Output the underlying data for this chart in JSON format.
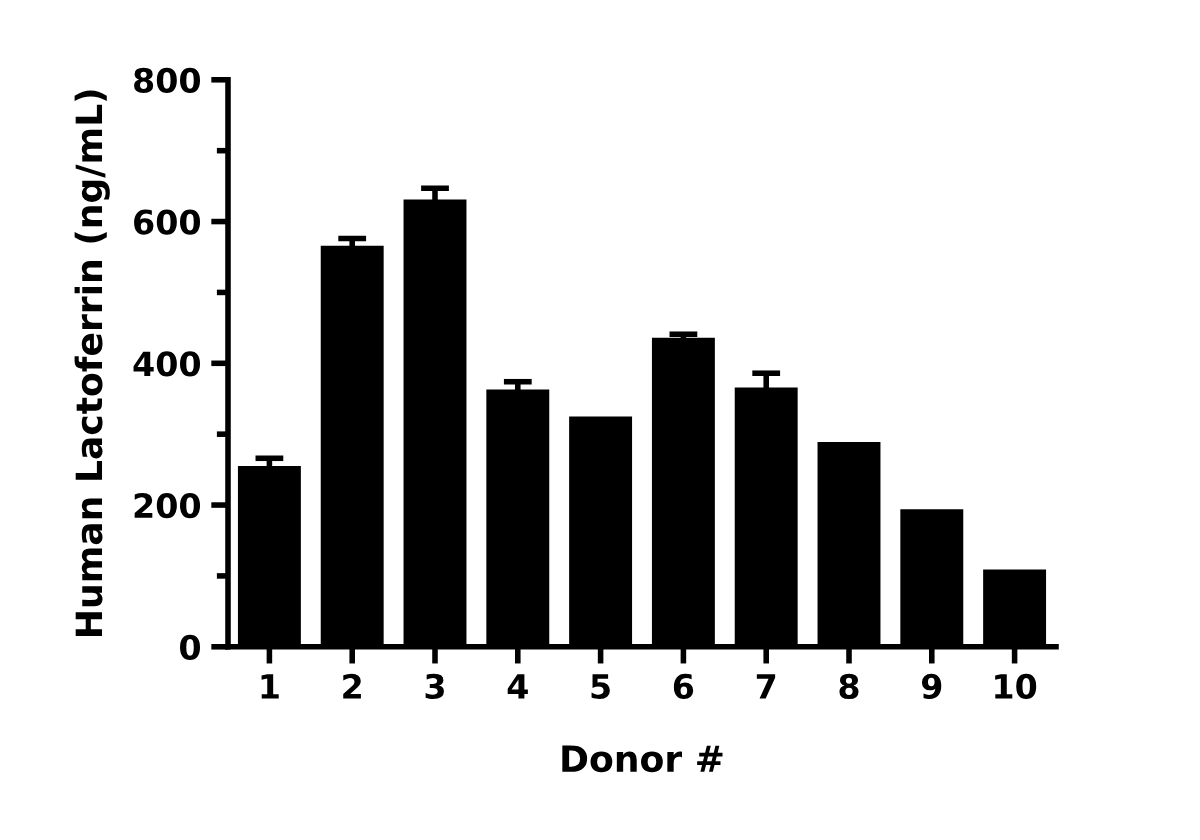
{
  "chart_data": {
    "type": "bar",
    "xlabel": "Donor #",
    "ylabel": "Human Lactoferrin (ng/mL)",
    "categories": [
      "1",
      "2",
      "3",
      "4",
      "5",
      "6",
      "7",
      "8",
      "9",
      "10"
    ],
    "values": [
      255,
      566,
      631,
      363,
      325,
      436,
      366,
      289,
      194,
      109
    ],
    "errors": [
      11,
      10,
      16,
      11,
      null,
      5,
      20,
      null,
      null,
      null
    ],
    "color": "#000000",
    "ylim": [
      0,
      800
    ],
    "yticks": [
      0,
      200,
      400,
      600,
      800
    ],
    "grid": false
  }
}
